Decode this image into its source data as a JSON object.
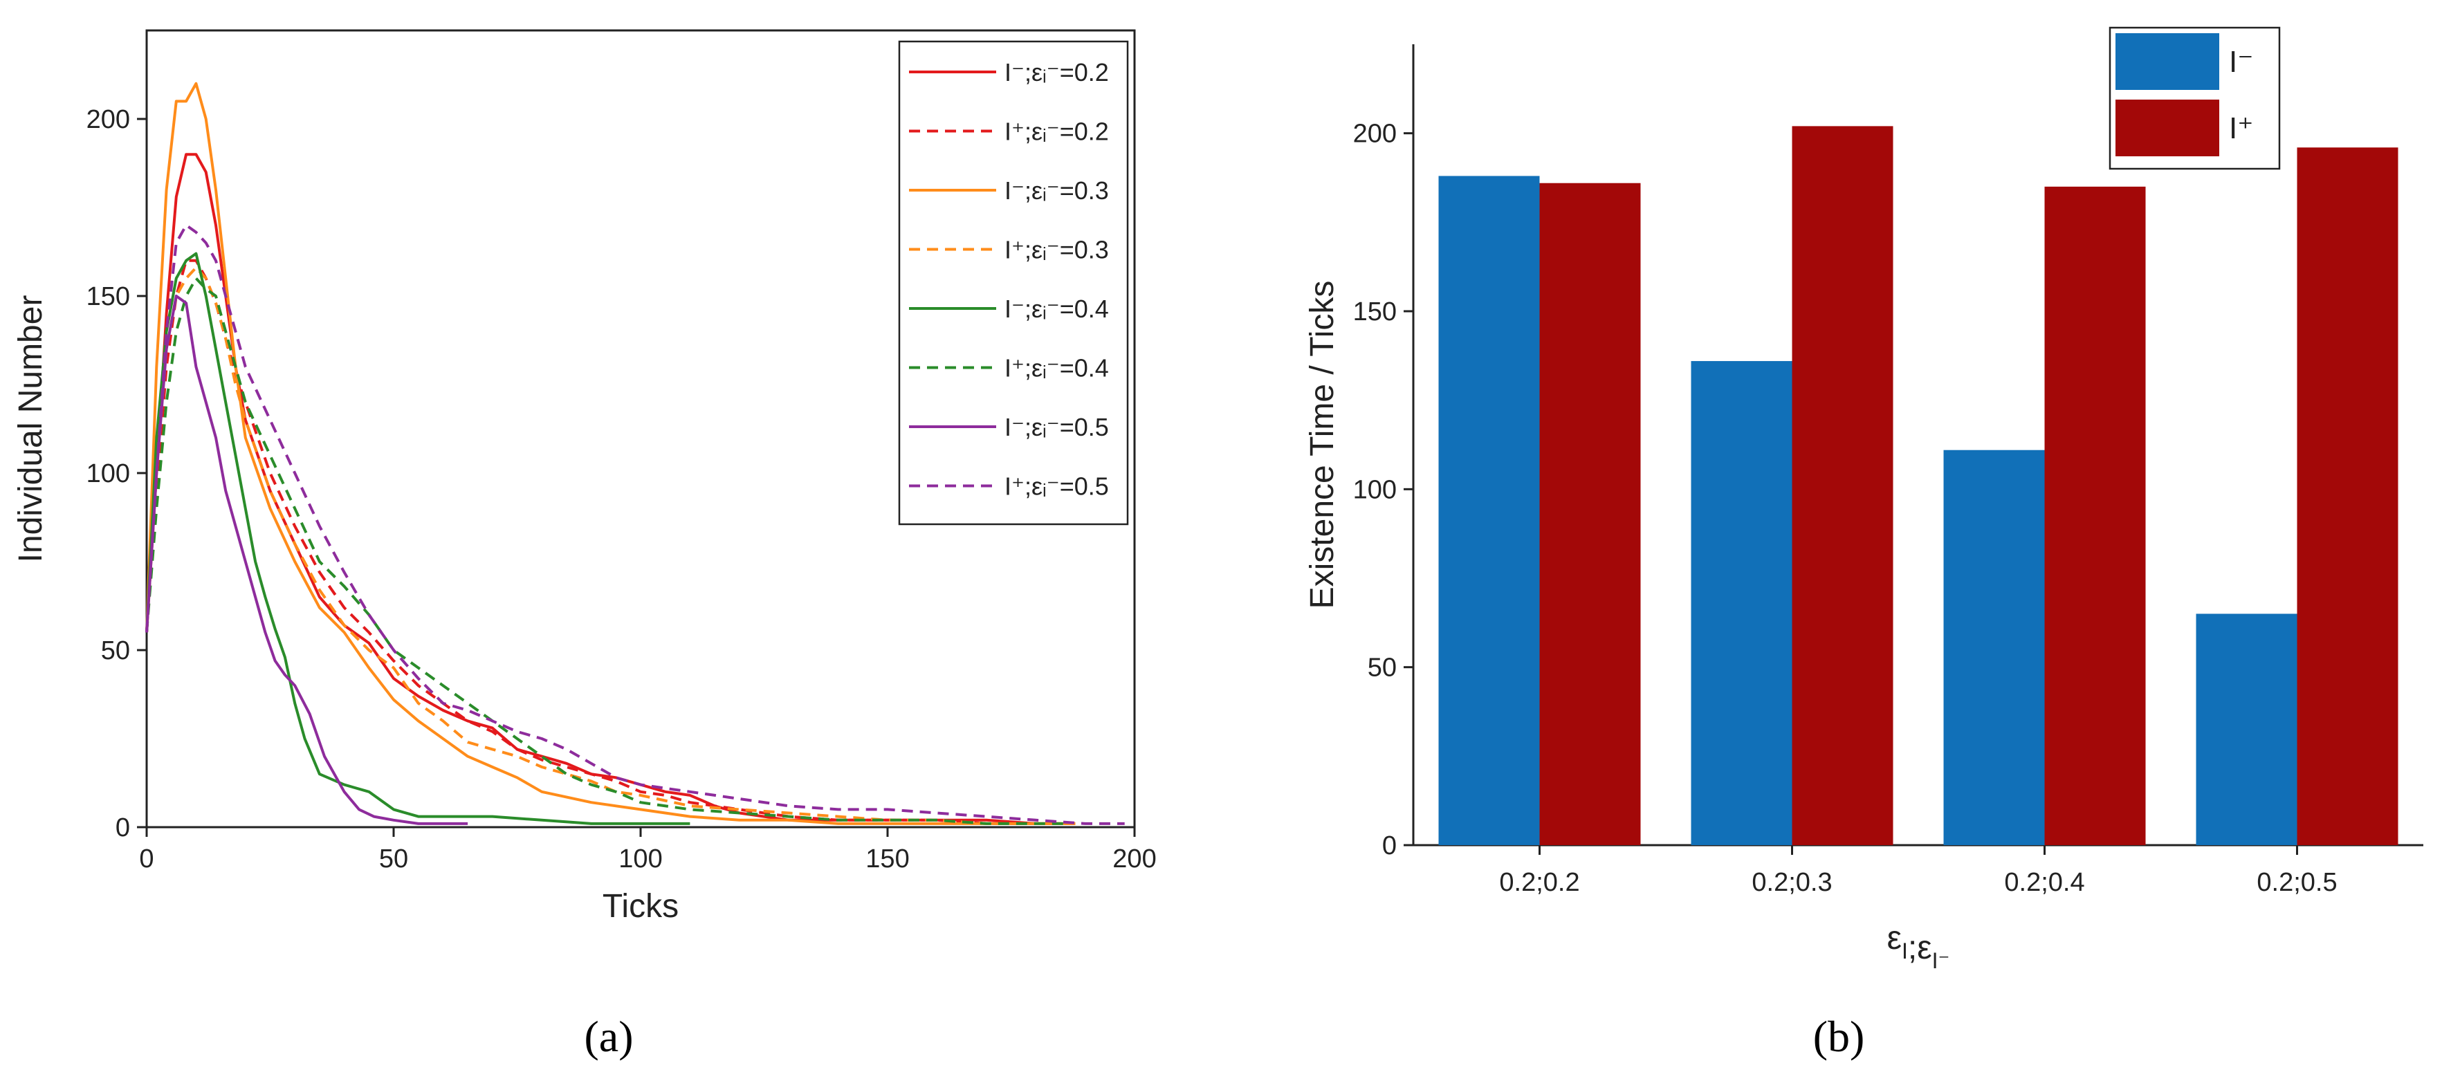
{
  "chart_data": [
    {
      "id": "a",
      "type": "line",
      "panel_label": "(a)",
      "xlabel": "Ticks",
      "ylabel": "Individual Number",
      "xlim": [
        0,
        200
      ],
      "ylim": [
        0,
        225
      ],
      "xticks": [
        0,
        50,
        100,
        150,
        200
      ],
      "yticks": [
        0,
        50,
        100,
        150,
        200
      ],
      "legend_position": "top-right",
      "series": [
        {
          "name": "I⁻;ε=0.2",
          "legend_text": "I⁻;εᵢ⁻=0.2",
          "color": "#e31a1c",
          "style": "solid",
          "x": [
            0,
            2,
            4,
            6,
            8,
            10,
            12,
            14,
            16,
            18,
            20,
            25,
            30,
            35,
            40,
            45,
            50,
            55,
            60,
            65,
            70,
            75,
            80,
            85,
            90,
            95,
            100,
            105,
            110,
            115,
            120,
            125,
            130,
            140,
            150,
            160,
            170,
            180,
            185
          ],
          "y": [
            55,
            100,
            145,
            178,
            190,
            190,
            185,
            170,
            150,
            130,
            115,
            95,
            80,
            65,
            57,
            52,
            42,
            37,
            33,
            30,
            28,
            22,
            20,
            18,
            15,
            14,
            12,
            10,
            9,
            6,
            4,
            3,
            2,
            2,
            2,
            2,
            2,
            1,
            1
          ]
        },
        {
          "name": "I⁺;ε=0.2",
          "legend_text": "I⁺;εᵢ⁻=0.2",
          "color": "#e31a1c",
          "style": "dashed",
          "x": [
            0,
            2,
            4,
            6,
            8,
            10,
            12,
            14,
            16,
            18,
            20,
            25,
            30,
            35,
            40,
            45,
            50,
            55,
            60,
            65,
            70,
            75,
            80,
            85,
            90,
            95,
            100,
            105,
            110,
            115,
            120,
            125,
            130,
            140,
            150,
            160,
            170,
            180,
            188
          ],
          "y": [
            55,
            95,
            130,
            150,
            160,
            160,
            155,
            148,
            138,
            128,
            120,
            100,
            85,
            72,
            62,
            55,
            47,
            40,
            35,
            30,
            27,
            22,
            19,
            17,
            15,
            13,
            10,
            9,
            7,
            6,
            5,
            4,
            3,
            2,
            2,
            2,
            1,
            1,
            1
          ]
        },
        {
          "name": "I⁻;ε=0.3",
          "legend_text": "I⁻;εᵢ⁻=0.3",
          "color": "#ff8c1a",
          "style": "solid",
          "x": [
            0,
            2,
            4,
            6,
            8,
            10,
            12,
            14,
            16,
            18,
            20,
            25,
            30,
            35,
            40,
            45,
            50,
            55,
            60,
            65,
            70,
            75,
            80,
            90,
            100,
            110,
            120,
            130,
            140,
            150,
            160,
            170,
            180,
            188
          ],
          "y": [
            55,
            130,
            180,
            205,
            205,
            210,
            200,
            180,
            155,
            130,
            110,
            90,
            75,
            62,
            55,
            45,
            36,
            30,
            25,
            20,
            17,
            14,
            10,
            7,
            5,
            3,
            2,
            2,
            1,
            1,
            1,
            1,
            1,
            1
          ]
        },
        {
          "name": "I⁺;ε=0.3",
          "legend_text": "I⁺;εᵢ⁻=0.3",
          "color": "#ff8c1a",
          "style": "dashed",
          "x": [
            0,
            2,
            4,
            6,
            8,
            10,
            12,
            14,
            16,
            18,
            20,
            25,
            30,
            35,
            40,
            45,
            50,
            55,
            60,
            65,
            70,
            75,
            80,
            85,
            90,
            95,
            100,
            110,
            120,
            130,
            140,
            150,
            160,
            170,
            180,
            188
          ],
          "y": [
            55,
            100,
            135,
            150,
            155,
            158,
            155,
            148,
            138,
            125,
            115,
            95,
            80,
            67,
            57,
            50,
            45,
            35,
            30,
            24,
            22,
            20,
            17,
            15,
            13,
            10,
            9,
            6,
            5,
            4,
            3,
            2,
            2,
            1,
            1,
            1
          ]
        },
        {
          "name": "I⁻;ε=0.4",
          "legend_text": "I⁻;εᵢ⁻=0.4",
          "color": "#2a8c2a",
          "style": "solid",
          "x": [
            0,
            2,
            4,
            6,
            8,
            10,
            12,
            14,
            16,
            18,
            20,
            22,
            24,
            26,
            28,
            30,
            32,
            35,
            40,
            45,
            50,
            55,
            60,
            70,
            80,
            90,
            100,
            110
          ],
          "y": [
            55,
            110,
            140,
            155,
            160,
            162,
            150,
            135,
            120,
            105,
            90,
            75,
            65,
            56,
            48,
            35,
            25,
            15,
            12,
            10,
            5,
            3,
            3,
            3,
            2,
            1,
            1,
            1
          ]
        },
        {
          "name": "I⁺;ε=0.4",
          "legend_text": "I⁺;εᵢ⁻=0.4",
          "color": "#2a8c2a",
          "style": "dashed",
          "x": [
            0,
            2,
            4,
            6,
            8,
            10,
            12,
            14,
            16,
            18,
            20,
            25,
            30,
            35,
            40,
            45,
            50,
            55,
            60,
            65,
            70,
            75,
            80,
            85,
            90,
            95,
            100,
            110,
            120,
            130,
            140,
            150,
            160,
            170,
            180,
            186
          ],
          "y": [
            55,
            90,
            120,
            140,
            150,
            155,
            152,
            150,
            140,
            130,
            120,
            105,
            90,
            75,
            68,
            60,
            50,
            45,
            40,
            35,
            30,
            25,
            20,
            15,
            12,
            10,
            7,
            5,
            4,
            3,
            2,
            2,
            2,
            1,
            1,
            1
          ]
        },
        {
          "name": "I⁻;ε=0.5",
          "legend_text": "I⁻;εᵢ⁻=0.5",
          "color": "#8e2c9c",
          "style": "solid",
          "x": [
            0,
            2,
            4,
            6,
            8,
            10,
            12,
            14,
            16,
            18,
            20,
            22,
            24,
            26,
            28,
            30,
            33,
            36,
            40,
            43,
            46,
            50,
            55,
            60,
            65
          ],
          "y": [
            55,
            100,
            135,
            150,
            148,
            130,
            120,
            110,
            95,
            85,
            75,
            65,
            55,
            47,
            43,
            40,
            32,
            20,
            10,
            5,
            3,
            2,
            1,
            1,
            1
          ]
        },
        {
          "name": "I⁺;ε=0.5",
          "legend_text": "I⁺;εᵢ⁻=0.5",
          "color": "#8e2c9c",
          "style": "dashed",
          "x": [
            0,
            2,
            4,
            6,
            8,
            10,
            12,
            14,
            16,
            18,
            20,
            25,
            30,
            35,
            40,
            45,
            50,
            55,
            60,
            65,
            70,
            75,
            80,
            85,
            90,
            95,
            100,
            110,
            120,
            130,
            140,
            150,
            160,
            170,
            180,
            190,
            198
          ],
          "y": [
            55,
            100,
            140,
            165,
            170,
            168,
            165,
            160,
            150,
            140,
            130,
            115,
            100,
            85,
            72,
            60,
            50,
            42,
            35,
            33,
            30,
            27,
            25,
            22,
            18,
            14,
            12,
            10,
            8,
            6,
            5,
            5,
            4,
            3,
            2,
            1,
            1
          ]
        }
      ]
    },
    {
      "id": "b",
      "type": "bar",
      "panel_label": "(b)",
      "xlabel": "ε_I;ε_I⁻",
      "ylabel": "Existence Time / Ticks",
      "ylim": [
        0,
        225
      ],
      "yticks": [
        0,
        50,
        100,
        150,
        200
      ],
      "categories": [
        "0.2;0.2",
        "0.2;0.3",
        "0.2;0.4",
        "0.2;0.5"
      ],
      "legend_position": "top-right",
      "series": [
        {
          "name": "I⁻",
          "color": "#1170b8",
          "values": [
            188,
            136,
            111,
            65
          ]
        },
        {
          "name": "I⁺",
          "color": "#a30808",
          "values": [
            186,
            202,
            185,
            196
          ]
        }
      ]
    }
  ]
}
